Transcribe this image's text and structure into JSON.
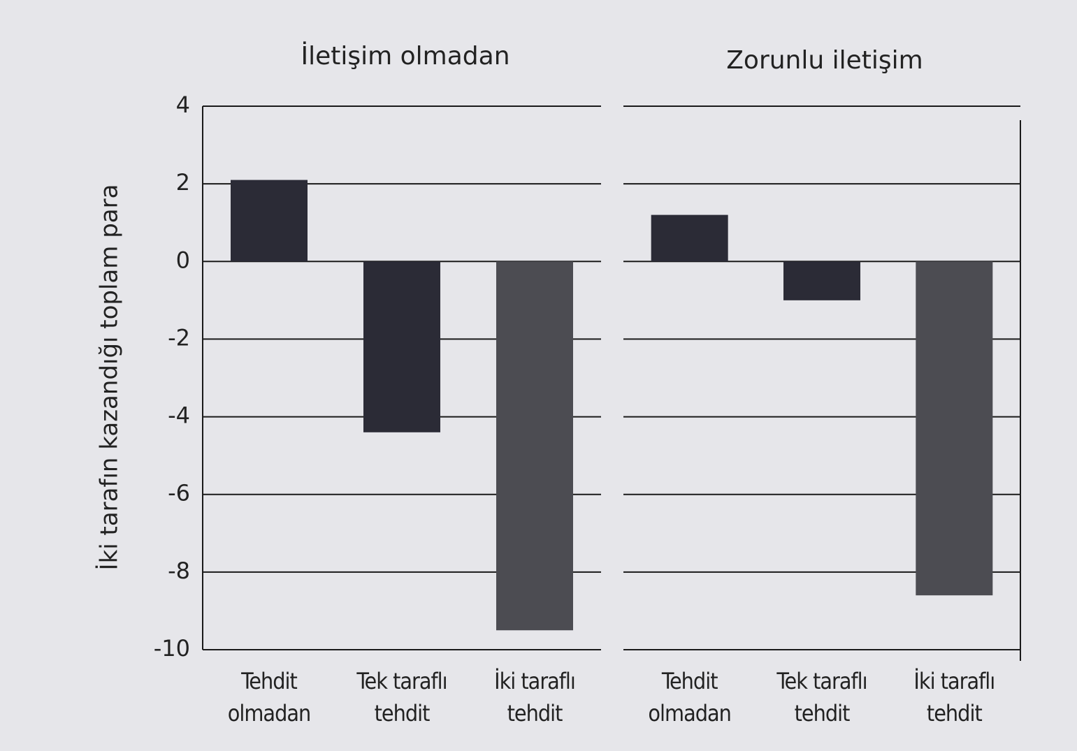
{
  "chart_data": [
    {
      "type": "bar",
      "title": "İletişim olmadan",
      "ylabel": "İki tarafın kazandığı toplam para",
      "categories": [
        "Tehdit olmadan",
        "Tek taraflı tehdit",
        "İki taraflı tehdit"
      ],
      "values": [
        2.1,
        -4.4,
        -9.5
      ],
      "colors": [
        "#2b2b36",
        "#2b2b36",
        "#4c4c52"
      ],
      "ylim": [
        -10,
        4
      ],
      "yticks": [
        -10,
        -8,
        -6,
        -4,
        -2,
        0,
        2,
        4
      ],
      "grid": true
    },
    {
      "type": "bar",
      "title": "Zorunlu iletişim",
      "categories": [
        "Tehdit olmadan",
        "Tek taraflı tehdit",
        "İki taraflı tehdit"
      ],
      "values": [
        1.2,
        -1.0,
        -8.6
      ],
      "colors": [
        "#2b2b36",
        "#2b2b36",
        "#4c4c52"
      ],
      "ylim": [
        -10,
        4
      ],
      "yticks": [
        -10,
        -8,
        -6,
        -4,
        -2,
        0,
        2,
        4
      ],
      "grid": true
    }
  ]
}
